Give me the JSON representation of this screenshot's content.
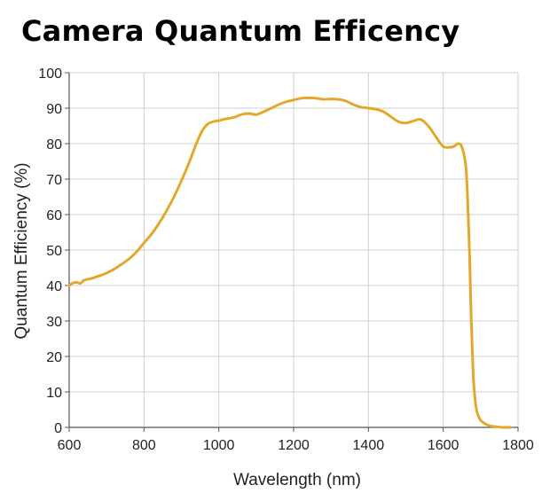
{
  "chart_data": {
    "type": "line",
    "title": "Camera Quantum Efficency",
    "xlabel": "Wavelength (nm)",
    "ylabel": "Quantum Efficiency (%)",
    "xlim": [
      600,
      1800
    ],
    "ylim": [
      0,
      100
    ],
    "xticks": [
      600,
      800,
      1000,
      1200,
      1400,
      1600,
      1800
    ],
    "yticks": [
      0,
      10,
      20,
      30,
      40,
      50,
      60,
      70,
      80,
      90,
      100
    ],
    "grid": true,
    "line_color": "#E3A82B",
    "series": [
      {
        "x": [
          600,
          610,
          620,
          630,
          640,
          660,
          680,
          700,
          720,
          740,
          760,
          780,
          800,
          820,
          840,
          860,
          880,
          900,
          920,
          940,
          955,
          970,
          985,
          1000,
          1020,
          1040,
          1060,
          1080,
          1100,
          1120,
          1140,
          1160,
          1180,
          1200,
          1220,
          1240,
          1260,
          1280,
          1300,
          1320,
          1340,
          1360,
          1380,
          1400,
          1420,
          1440,
          1460,
          1480,
          1500,
          1520,
          1540,
          1560,
          1580,
          1600,
          1620,
          1630,
          1640,
          1650,
          1660,
          1665,
          1670,
          1675,
          1680,
          1685,
          1690,
          1700,
          1720,
          1740,
          1760,
          1780
        ],
        "y": [
          40.0,
          40.7,
          40.9,
          40.6,
          41.5,
          42.0,
          42.7,
          43.5,
          44.6,
          46.0,
          47.5,
          49.5,
          52.0,
          54.5,
          57.5,
          61.0,
          65.0,
          69.5,
          74.5,
          80.0,
          83.5,
          85.5,
          86.2,
          86.5,
          87.0,
          87.4,
          88.2,
          88.5,
          88.2,
          89.0,
          90.0,
          91.0,
          91.8,
          92.3,
          92.8,
          92.9,
          92.8,
          92.5,
          92.6,
          92.5,
          92.0,
          91.0,
          90.3,
          90.0,
          89.7,
          89.0,
          87.6,
          86.2,
          85.8,
          86.4,
          86.8,
          85.0,
          82.0,
          79.2,
          79.0,
          79.3,
          80.0,
          79.0,
          74.0,
          65.0,
          50.0,
          30.0,
          15.0,
          8.0,
          4.5,
          2.0,
          0.6,
          0.2,
          0.0,
          0.0
        ]
      }
    ]
  }
}
